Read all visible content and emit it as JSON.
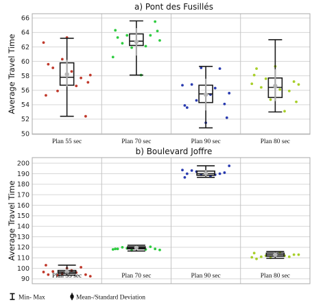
{
  "chart_data": [
    {
      "type": "box",
      "title": "a) Pont des Fusillés",
      "ylabel": "Average Travel Time",
      "ylim": [
        50,
        66.5
      ],
      "yticks": [
        50,
        52,
        54,
        56,
        58,
        60,
        62,
        64,
        66
      ],
      "categories": [
        "Plan 55 sec",
        "Plan 70 sec",
        "Plan 90 sec",
        "Plan 80 sec"
      ],
      "colors": [
        "#c0392b",
        "#2ecc40",
        "#2a3bb0",
        "#a8cf2a"
      ],
      "stats": [
        {
          "min": 52.4,
          "q1": 56.7,
          "median": 57.8,
          "q3": 59.8,
          "max": 63.2,
          "mean": 58.2,
          "sd_low": 56.5,
          "sd_high": 60.2
        },
        {
          "min": 58.1,
          "q1": 62.2,
          "median": 62.8,
          "q3": 63.8,
          "max": 65.6,
          "mean": 62.7,
          "sd_low": 60.8,
          "sd_high": 64.6
        },
        {
          "min": 50.8,
          "q1": 54.3,
          "median": 55.5,
          "q3": 56.7,
          "max": 59.3,
          "mean": 55.4,
          "sd_low": 53.2,
          "sd_high": 57.6
        },
        {
          "min": 53.0,
          "q1": 55.0,
          "median": 56.4,
          "q3": 57.7,
          "max": 63.0,
          "mean": 56.6,
          "sd_low": 54.5,
          "sd_high": 58.9
        }
      ],
      "points": [
        [
          62.6,
          59.6,
          59.1,
          55.9,
          60.3,
          63.3,
          58.6,
          56.6,
          57.7,
          52.4,
          58.1,
          55.3,
          57.1
        ],
        [
          60.6,
          63.3,
          62.5,
          63.6,
          61.9,
          62.6,
          58.1,
          62.1,
          63.6,
          65.5,
          62.9,
          64.3,
          64.2
        ],
        [
          56.7,
          53.6,
          56.8,
          54.6,
          59.1,
          51.5,
          55.4,
          56.3,
          59.0,
          54.1,
          55.6,
          53.9,
          52.2
        ],
        [
          56.9,
          59.0,
          56.4,
          57.6,
          54.7,
          59.3,
          56.1,
          53.1,
          55.9,
          57.2,
          56.8,
          58.1,
          54.4
        ]
      ]
    },
    {
      "type": "box",
      "title": "b) Boulevard Joffre",
      "ylabel": "Average Travel Time",
      "ylim": [
        88,
        204
      ],
      "yticks": [
        90,
        100,
        110,
        120,
        130,
        140,
        150,
        160,
        170,
        180,
        190,
        200
      ],
      "categories": [
        "Plan 55 sec",
        "Plan 70 sec",
        "Plan 90 sec",
        "Plan 80 sec"
      ],
      "colors": [
        "#c0392b",
        "#2ecc40",
        "#2a3bb0",
        "#a8cf2a"
      ],
      "stats": [
        {
          "min": 93.5,
          "q1": 95.2,
          "median": 96.5,
          "q3": 98.0,
          "max": 103.0,
          "mean": 96.8,
          "sd_low": 94.5,
          "sd_high": 99.3
        },
        {
          "min": 116.5,
          "q1": 118.5,
          "median": 119.5,
          "q3": 120.5,
          "max": 122.0,
          "mean": 119.6,
          "sd_low": 117.8,
          "sd_high": 121.4
        },
        {
          "min": 186.5,
          "q1": 188.5,
          "median": 190.0,
          "q3": 192.5,
          "max": 197.5,
          "mean": 190.5,
          "sd_low": 187.5,
          "sd_high": 193.5
        },
        {
          "min": 109.5,
          "q1": 111.5,
          "median": 113.0,
          "q3": 114.5,
          "max": 116.0,
          "mean": 113.0,
          "sd_low": 111.2,
          "sd_high": 114.8
        }
      ],
      "points": [
        [
          96.5,
          94.0,
          97.0,
          93.5,
          95.0,
          100.0,
          98.0,
          96.0,
          101.0,
          94.0,
          92.5,
          103.0
        ],
        [
          118.0,
          118.5,
          120.0,
          119.0,
          117.0,
          121.0,
          119.5,
          118.0,
          120.5,
          118.5,
          117.5,
          118.5
        ],
        [
          193.5,
          190.0,
          193.0,
          192.0,
          189.0,
          191.0,
          187.5,
          189.0,
          190.0,
          191.0,
          197.5,
          186.5
        ],
        [
          110.5,
          109.0,
          111.0,
          112.0,
          110.0,
          113.0,
          115.0,
          112.0,
          111.0,
          113.0,
          113.0,
          114.5
        ]
      ]
    }
  ],
  "legend": {
    "minmax_label": "Min- Max",
    "mean_label": "Mean-/Standard Deviation"
  }
}
